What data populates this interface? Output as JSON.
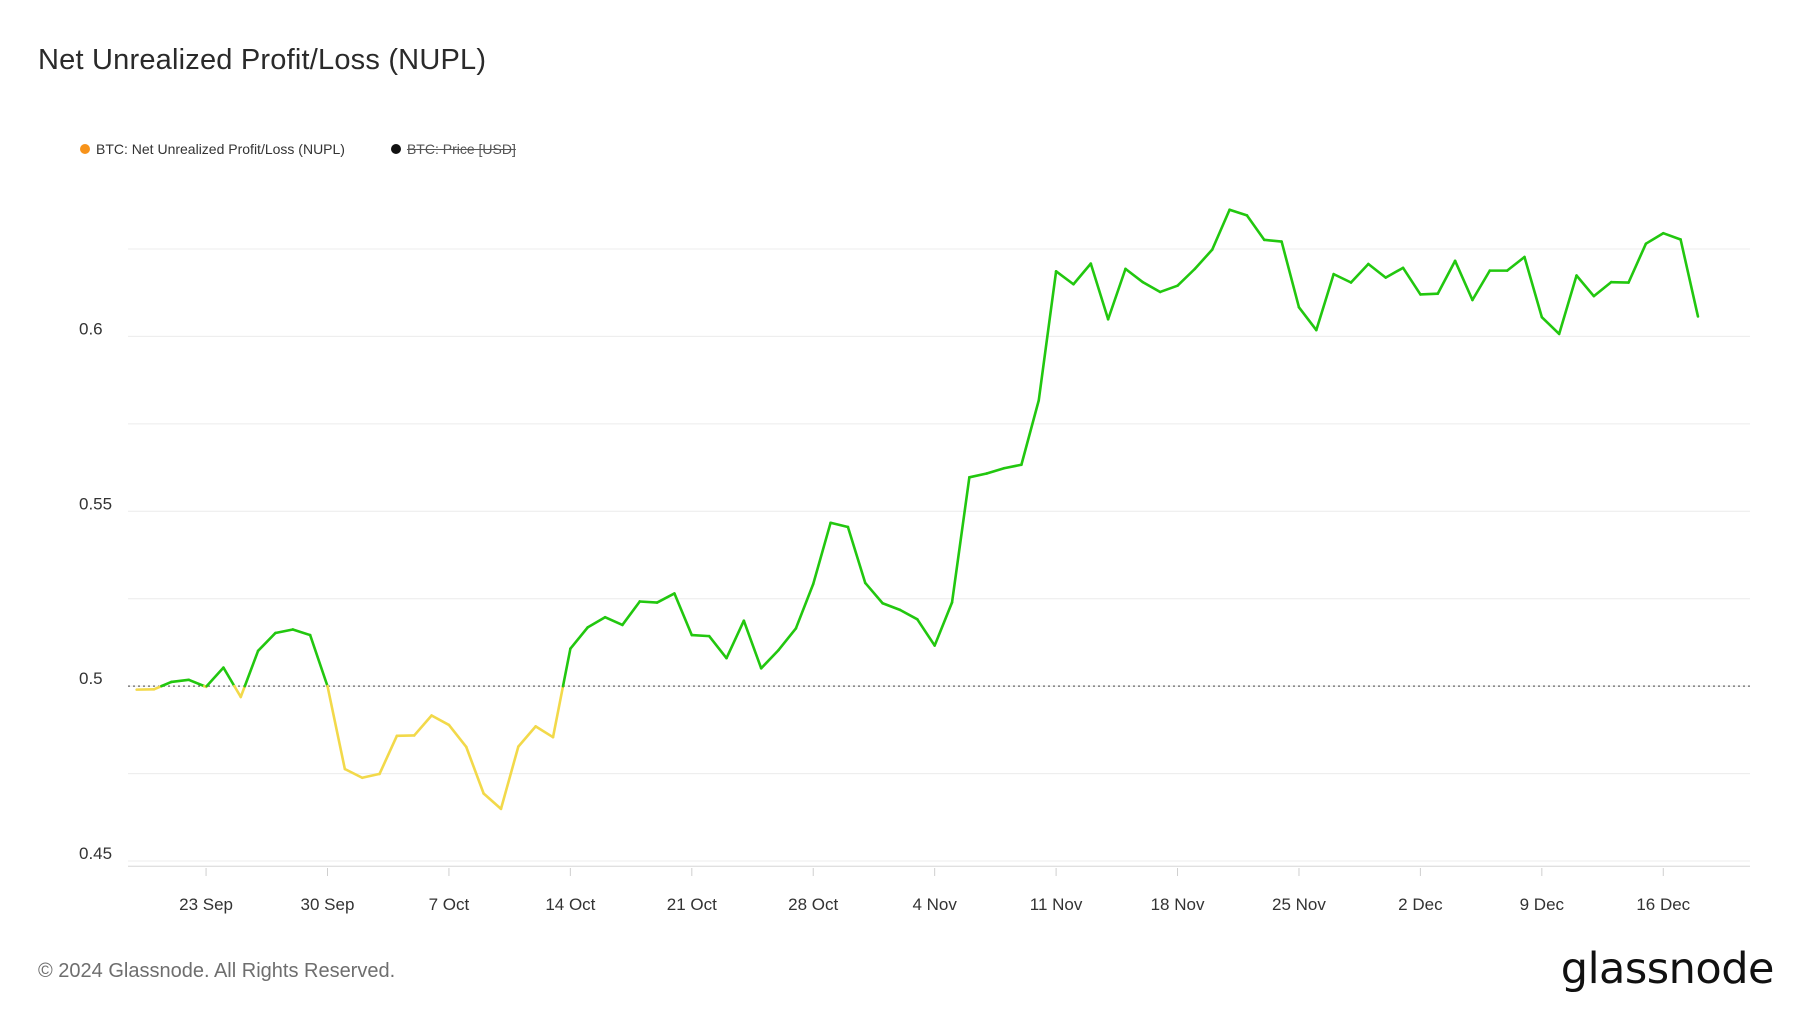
{
  "title": "Net Unrealized Profit/Loss (NUPL)",
  "legend": [
    {
      "label": "BTC: Net Unrealized Profit/Loss (NUPL)",
      "color": "#f7931a",
      "disabled": false
    },
    {
      "label": "BTC: Price [USD]",
      "color": "#111111",
      "disabled": true
    }
  ],
  "footer": {
    "copyright": "© 2024 Glassnode. All Rights Reserved.",
    "logo_text": "glassnode"
  },
  "colors": {
    "above_threshold": "#22c70f",
    "below_threshold": "#f2d94a",
    "grid": "#ececec",
    "threshold_line": "#666666"
  },
  "chart_data": {
    "type": "line",
    "title": "Net Unrealized Profit/Loss (NUPL)",
    "xlabel": "",
    "ylabel": "",
    "ylim": [
      0.448,
      0.649
    ],
    "threshold": 0.5,
    "yticks": [
      0.45,
      0.5,
      0.55,
      0.6
    ],
    "xticks": [
      "23 Sep",
      "30 Sep",
      "7 Oct",
      "14 Oct",
      "21 Oct",
      "28 Oct",
      "4 Nov",
      "11 Nov",
      "18 Nov",
      "25 Nov",
      "2 Dec",
      "9 Dec",
      "16 Dec"
    ],
    "grid": true,
    "legend_position": "top-left",
    "series": [
      {
        "name": "BTC: Net Unrealized Profit/Loss (NUPL)",
        "x": [
          "2024-09-19",
          "2024-09-20",
          "2024-09-21",
          "2024-09-22",
          "2024-09-23",
          "2024-09-24",
          "2024-09-25",
          "2024-09-26",
          "2024-09-27",
          "2024-09-28",
          "2024-09-29",
          "2024-09-30",
          "2024-10-01",
          "2024-10-02",
          "2024-10-03",
          "2024-10-04",
          "2024-10-05",
          "2024-10-06",
          "2024-10-07",
          "2024-10-08",
          "2024-10-09",
          "2024-10-10",
          "2024-10-11",
          "2024-10-12",
          "2024-10-13",
          "2024-10-14",
          "2024-10-15",
          "2024-10-16",
          "2024-10-17",
          "2024-10-18",
          "2024-10-19",
          "2024-10-20",
          "2024-10-21",
          "2024-10-22",
          "2024-10-23",
          "2024-10-24",
          "2024-10-25",
          "2024-10-26",
          "2024-10-27",
          "2024-10-28",
          "2024-10-29",
          "2024-10-30",
          "2024-10-31",
          "2024-11-01",
          "2024-11-02",
          "2024-11-03",
          "2024-11-04",
          "2024-11-05",
          "2024-11-06",
          "2024-11-07",
          "2024-11-08",
          "2024-11-09",
          "2024-11-10",
          "2024-11-11",
          "2024-11-12",
          "2024-11-13",
          "2024-11-14",
          "2024-11-15",
          "2024-11-16",
          "2024-11-17",
          "2024-11-18",
          "2024-11-19",
          "2024-11-20",
          "2024-11-21",
          "2024-11-22",
          "2024-11-23",
          "2024-11-24",
          "2024-11-25",
          "2024-11-26",
          "2024-11-27",
          "2024-11-28",
          "2024-11-29",
          "2024-11-30",
          "2024-12-01",
          "2024-12-02",
          "2024-12-03",
          "2024-12-04",
          "2024-12-05",
          "2024-12-06",
          "2024-12-07",
          "2024-12-08",
          "2024-12-09",
          "2024-12-10",
          "2024-12-11",
          "2024-12-12",
          "2024-12-13",
          "2024-12-14",
          "2024-12-15",
          "2024-12-16",
          "2024-12-17",
          "2024-12-18"
        ],
        "values": [
          0.499,
          0.4991,
          0.5012,
          0.5018,
          0.4998,
          0.5053,
          0.4969,
          0.5101,
          0.5152,
          0.5162,
          0.5146,
          0.5,
          0.4763,
          0.4738,
          0.4749,
          0.4858,
          0.4859,
          0.4916,
          0.4889,
          0.4826,
          0.4693,
          0.4649,
          0.4827,
          0.4885,
          0.4854,
          0.5107,
          0.5168,
          0.5197,
          0.5175,
          0.5242,
          0.5239,
          0.5265,
          0.5146,
          0.5143,
          0.508,
          0.5187,
          0.5051,
          0.5103,
          0.5165,
          0.5292,
          0.5467,
          0.5455,
          0.5295,
          0.5237,
          0.5218,
          0.5191,
          0.5116,
          0.5239,
          0.5597,
          0.5608,
          0.5623,
          0.5633,
          0.5817,
          0.6186,
          0.6149,
          0.6208,
          0.6049,
          0.6193,
          0.6155,
          0.6127,
          0.6145,
          0.6193,
          0.6248,
          0.6362,
          0.6346,
          0.6276,
          0.6271,
          0.6083,
          0.6018,
          0.6178,
          0.6154,
          0.6207,
          0.6168,
          0.6196,
          0.612,
          0.6122,
          0.6216,
          0.6104,
          0.6188,
          0.6188,
          0.6227,
          0.6055,
          0.6007,
          0.6174,
          0.6115,
          0.6155,
          0.6154,
          0.6265,
          0.6295,
          0.6277,
          0.6057
        ]
      }
    ]
  }
}
